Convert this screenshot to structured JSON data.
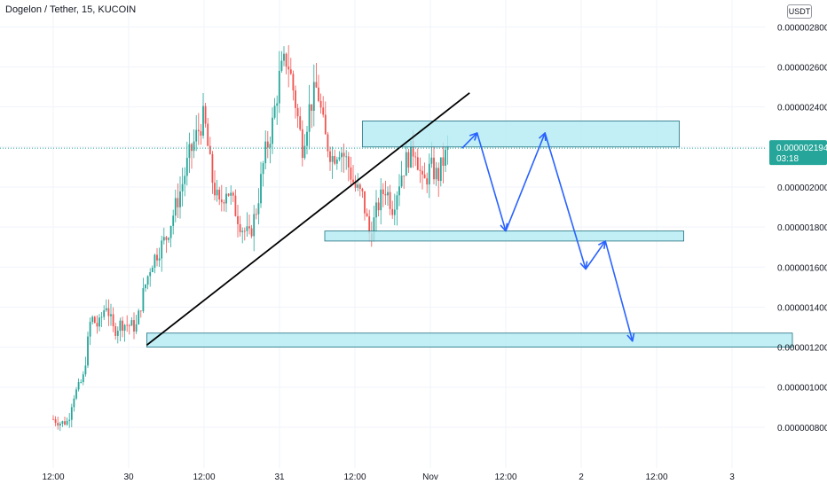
{
  "header": {
    "title": "Dogelon / Tether, 15, KUCOIN",
    "currency": "USDT"
  },
  "colors": {
    "up": "#26a69a",
    "down": "#ef5350",
    "zone_fill": "#b2ebf2",
    "zone_stroke": "#1f6f80",
    "projection": "#2962ff",
    "trendline": "#000000",
    "price_tag": "#26a69a",
    "grid": "#f0f3fa"
  },
  "chart_data": {
    "type": "candlestick",
    "x_tick_labels": [
      "12:00",
      "30",
      "12:00",
      "31",
      "12:00",
      "Nov",
      "12:00",
      "2",
      "12:00",
      "3"
    ],
    "y_tick_labels": [
      "0.000002800",
      "0.000002600",
      "0.000002400",
      "0.000002200",
      "0.000002000",
      "0.000001800",
      "0.000001600",
      "0.000001400",
      "0.000001200",
      "0.000001000",
      "0.000000800"
    ],
    "y_ticks": [
      2.8e-06,
      2.6e-06,
      2.4e-06,
      2.2e-06,
      2e-06,
      1.8e-06,
      1.6e-06,
      1.4e-06,
      1.2e-06,
      1e-06,
      8e-07
    ],
    "ylim": [
      6.4e-07,
      2.89e-06
    ],
    "last_price": {
      "value": 2.194e-06,
      "label": "0.000002194",
      "countdown": "03:18"
    },
    "price_path": [
      [
        0,
        8.4e-07
      ],
      [
        0.05,
        8.2e-07
      ],
      [
        0.1,
        8.3e-07
      ],
      [
        0.13,
        9.5e-07
      ],
      [
        0.17,
        1e-06
      ],
      [
        0.2,
        1.05e-06
      ],
      [
        0.25,
        1.35e-06
      ],
      [
        0.3,
        1.3e-06
      ],
      [
        0.35,
        1.42e-06
      ],
      [
        0.4,
        1.28e-06
      ],
      [
        0.45,
        1.32e-06
      ],
      [
        0.55,
        1.3e-06
      ],
      [
        0.6,
        1.48e-06
      ],
      [
        0.65,
        1.62e-06
      ],
      [
        0.75,
        1.75e-06
      ],
      [
        0.85,
        2e-06
      ],
      [
        0.9,
        2.15e-06
      ],
      [
        0.97,
        2.3e-06
      ],
      [
        1.0,
        2.35e-06
      ],
      [
        1.05,
        2.05e-06
      ],
      [
        1.1,
        1.9e-06
      ],
      [
        1.15,
        2e-06
      ],
      [
        1.2,
        1.9e-06
      ],
      [
        1.25,
        1.8e-06
      ],
      [
        1.3,
        1.75e-06
      ],
      [
        1.35,
        1.9e-06
      ],
      [
        1.4,
        2.15e-06
      ],
      [
        1.45,
        2.3e-06
      ],
      [
        1.5,
        2.55e-06
      ],
      [
        1.55,
        2.65e-06
      ],
      [
        1.6,
        2.45e-06
      ],
      [
        1.65,
        2.2e-06
      ],
      [
        1.7,
        2.4e-06
      ],
      [
        1.75,
        2.5e-06
      ],
      [
        1.8,
        2.25e-06
      ],
      [
        1.85,
        2.15e-06
      ],
      [
        1.9,
        2.2e-06
      ],
      [
        1.95,
        2.12e-06
      ],
      [
        2.0,
        2e-06
      ],
      [
        2.05,
        1.95e-06
      ],
      [
        2.1,
        1.75e-06
      ],
      [
        2.15,
        1.9e-06
      ],
      [
        2.2,
        2e-06
      ],
      [
        2.25,
        1.9e-06
      ],
      [
        2.3,
        2.05e-06
      ],
      [
        2.35,
        2.15e-06
      ],
      [
        2.4,
        2.2e-06
      ],
      [
        2.45,
        2e-06
      ],
      [
        2.5,
        2.1e-06
      ],
      [
        2.55,
        2.05e-06
      ],
      [
        2.58,
        2.12e-06
      ],
      [
        2.62,
        2.19e-06
      ]
    ],
    "trendline": [
      [
        0.62,
        1.21e-06
      ],
      [
        2.76,
        2.47e-06
      ]
    ],
    "zones": [
      {
        "x0": 2.05,
        "x1": 4.15,
        "y_top": 2.33e-06,
        "y_bottom": 2.2e-06
      },
      {
        "x0": 1.8,
        "x1": 4.18,
        "y_top": 1.78e-06,
        "y_bottom": 1.73e-06
      },
      {
        "x0": 0.62,
        "x1": 4.9,
        "y_top": 1.27e-06,
        "y_bottom": 1.2e-06
      }
    ],
    "projection_path": [
      [
        2.71,
        2.194e-06
      ],
      [
        2.81,
        2.27e-06
      ],
      [
        3.0,
        1.78e-06
      ],
      [
        3.26,
        2.27e-06
      ],
      [
        3.53,
        1.59e-06
      ],
      [
        3.66,
        1.73e-06
      ],
      [
        3.84,
        1.23e-06
      ]
    ]
  }
}
